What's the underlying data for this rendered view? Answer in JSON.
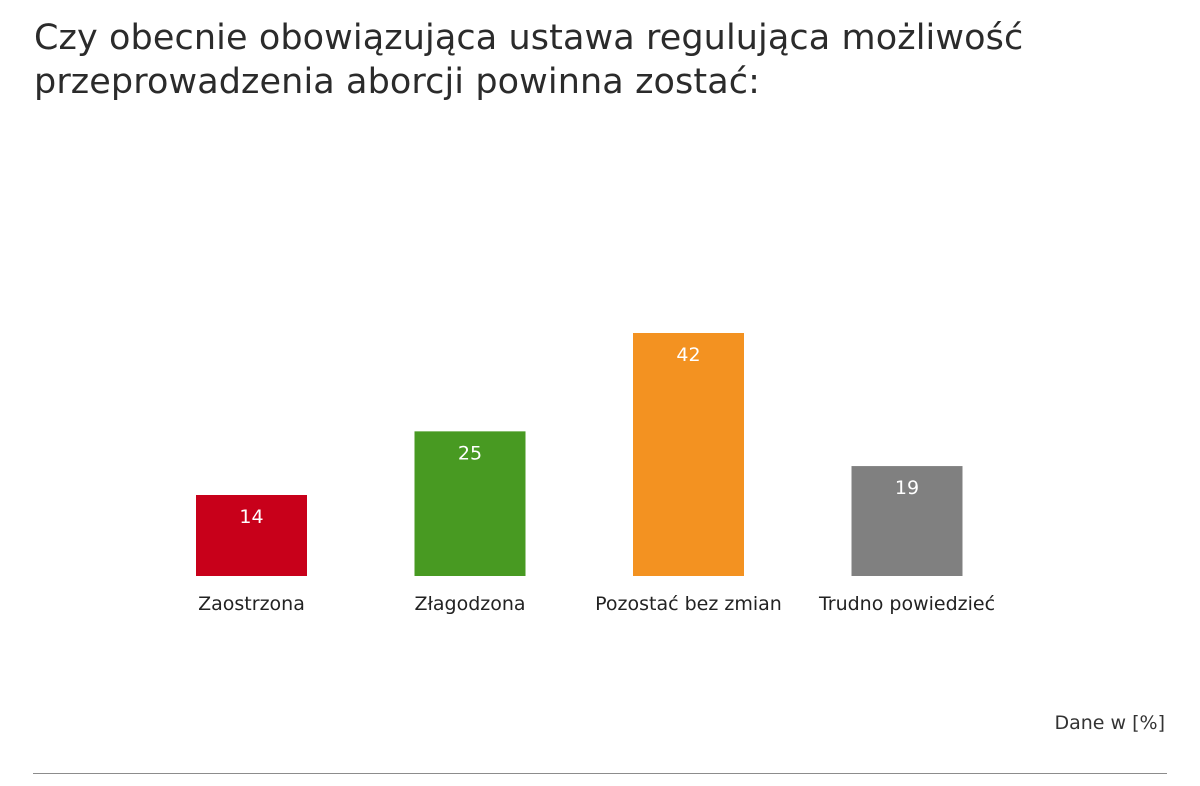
{
  "chart_data": {
    "type": "bar",
    "title": "Czy obecnie obowiązująca ustawa regulująca możliwość przeprowadzenia aborcji powinna zostać:",
    "categories": [
      "Zaostrzona",
      "Złagodzona",
      "Pozostać bez zmian",
      "Trudno powiedzieć"
    ],
    "values": [
      14,
      25,
      42,
      19
    ],
    "colors": [
      "#c8001a",
      "#489a22",
      "#f39221",
      "#808080"
    ],
    "value_label_color": "#ffffff",
    "ylim": [
      0,
      42
    ],
    "grid": false,
    "unit_note": "Dane w [%]"
  }
}
